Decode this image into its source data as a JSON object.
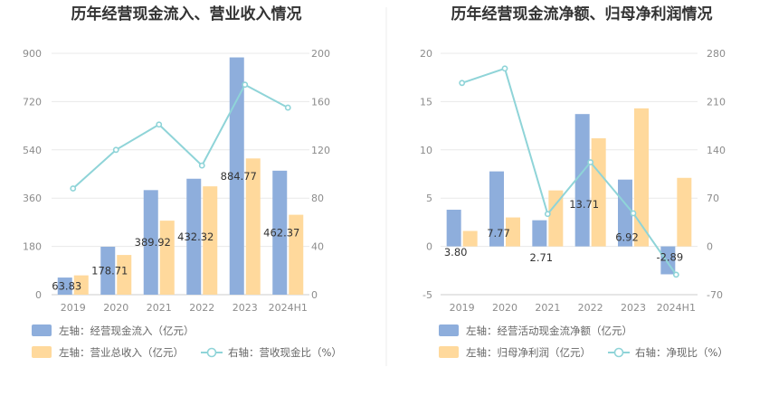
{
  "chart_data": [
    {
      "type": "bar",
      "title": "历年经营现金流入、营业收入情况",
      "categories": [
        "2019",
        "2020",
        "2021",
        "2022",
        "2023",
        "2024H1"
      ],
      "y_left": {
        "ticks": [
          "0",
          "180",
          "360",
          "540",
          "720",
          "900"
        ],
        "range": [
          0,
          900
        ]
      },
      "y_right": {
        "ticks": [
          "0",
          "40",
          "80",
          "120",
          "160",
          "200"
        ],
        "range": [
          0,
          200
        ]
      },
      "series": [
        {
          "name": "左轴：经营现金流入（亿元）",
          "kind": "bar",
          "axis": "left",
          "color": "#8eaedc",
          "values": [
            63.83,
            178.71,
            389.92,
            432.32,
            884.77,
            462.37
          ],
          "labels": [
            "63.83",
            "178.71",
            "389.92",
            "432.32",
            "884.77",
            "462.37"
          ]
        },
        {
          "name": "左轴：营业总收入（亿元）",
          "kind": "bar",
          "axis": "left",
          "color": "#ffd99c",
          "values": [
            72,
            148,
            276,
            404,
            508,
            298
          ]
        },
        {
          "name": "右轴：营收现金比（%）",
          "kind": "line",
          "axis": "right",
          "color": "#8fd4d8",
          "values": [
            88,
            120,
            141,
            107,
            174,
            155
          ]
        }
      ]
    },
    {
      "type": "bar",
      "title": "历年经营现金流净额、归母净利润情况",
      "categories": [
        "2019",
        "2020",
        "2021",
        "2022",
        "2023",
        "2024H1"
      ],
      "y_left": {
        "ticks": [
          "-5",
          "0",
          "5",
          "10",
          "15",
          "20"
        ],
        "range": [
          -5,
          20
        ]
      },
      "y_right": {
        "ticks": [
          "-70",
          "0",
          "70",
          "140",
          "210",
          "280"
        ],
        "range": [
          -70,
          280
        ]
      },
      "series": [
        {
          "name": "左轴：经营活动现金流净额（亿元）",
          "kind": "bar",
          "axis": "left",
          "color": "#8eaedc",
          "values": [
            3.8,
            7.77,
            2.71,
            13.71,
            6.92,
            -2.89
          ],
          "labels": [
            "3.80",
            "7.77",
            "2.71",
            "13.71",
            "6.92",
            "-2.89"
          ]
        },
        {
          "name": "左轴：归母净利润（亿元）",
          "kind": "bar",
          "axis": "left",
          "color": "#ffd99c",
          "values": [
            1.6,
            3.0,
            5.8,
            11.2,
            14.3,
            7.1
          ]
        },
        {
          "name": "右轴：净现比（%）",
          "kind": "line",
          "axis": "right",
          "color": "#8fd4d8",
          "values": [
            237,
            258,
            47,
            122,
            48,
            -41
          ]
        }
      ]
    }
  ]
}
